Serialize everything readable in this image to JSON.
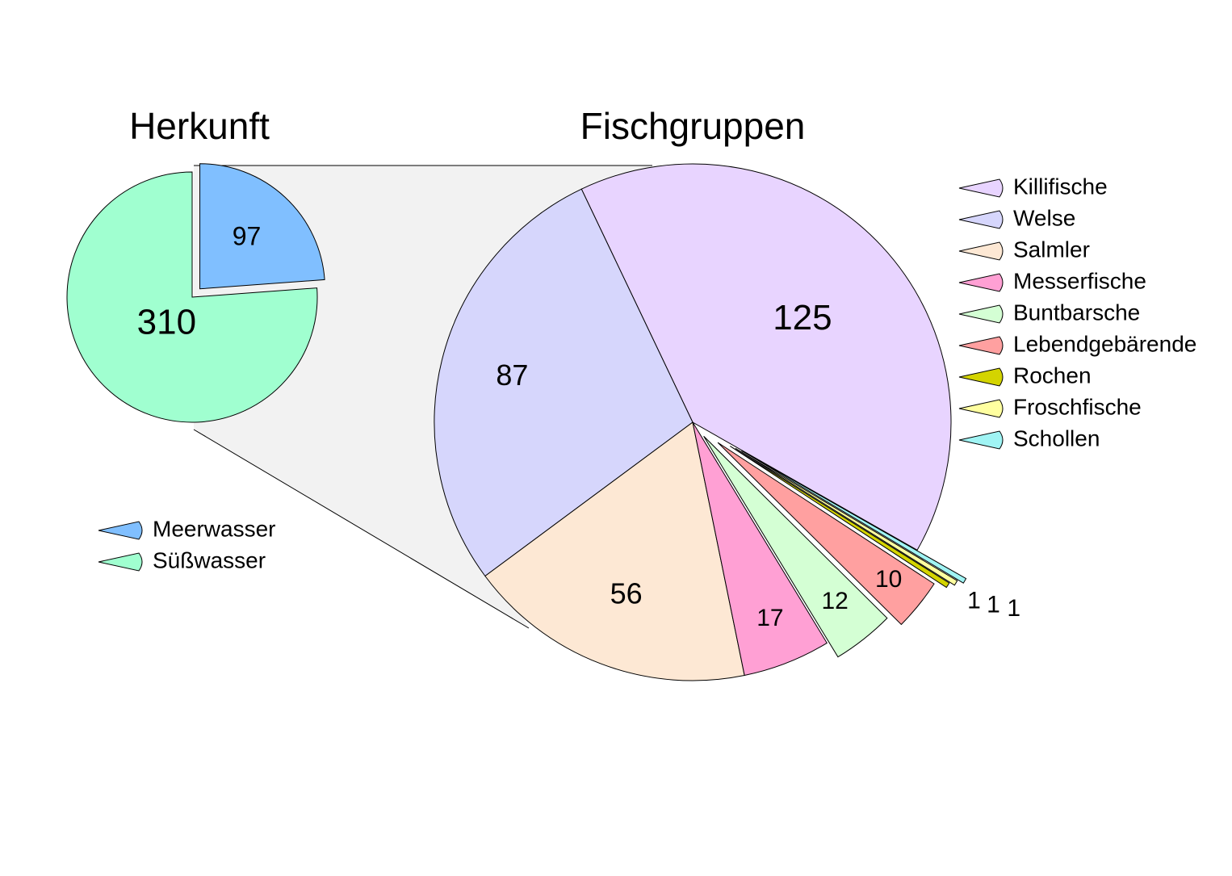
{
  "chart_data": [
    {
      "type": "pie",
      "title": "Herkunft",
      "categories": [
        "Meerwasser",
        "Süßwasser"
      ],
      "values": [
        97,
        310
      ],
      "colors": [
        "#80bfff",
        "#a0ffd0"
      ]
    },
    {
      "type": "pie",
      "title": "Fischgruppen",
      "categories": [
        "Killifische",
        "Welse",
        "Salmler",
        "Messerfische",
        "Buntbarsche",
        "Lebendgebärende",
        "Rochen",
        "Froschfische",
        "Schollen"
      ],
      "values": [
        125,
        87,
        56,
        17,
        12,
        10,
        1,
        1,
        1
      ],
      "colors": [
        "#e8d4ff",
        "#d6d6fc",
        "#fde8d4",
        "#ffa0d4",
        "#d4ffd4",
        "#ffa0a0",
        "#d4d400",
        "#ffffa0",
        "#a0f4f4"
      ]
    }
  ]
}
